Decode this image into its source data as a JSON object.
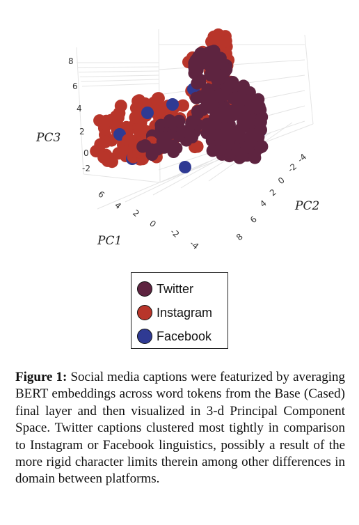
{
  "chart_data": {
    "type": "scatter",
    "subtype": "3d-scatter",
    "axes": {
      "x": {
        "label": "PC1",
        "ticks": [
          "6",
          "4",
          "2",
          "0",
          "-2",
          "-4"
        ]
      },
      "y": {
        "label": "PC2",
        "ticks": [
          "-4",
          "-2",
          "0",
          "2",
          "4",
          "6",
          "8"
        ]
      },
      "z": {
        "label": "PC3",
        "ticks": [
          "-2",
          "0",
          "2",
          "4",
          "6",
          "8"
        ]
      }
    },
    "xlim": [
      -4,
      6
    ],
    "ylim": [
      -4,
      8
    ],
    "zlim": [
      -2,
      8
    ],
    "series": [
      {
        "name": "Twitter",
        "color": "#5e2440"
      },
      {
        "name": "Instagram",
        "color": "#b8352a"
      },
      {
        "name": "Facebook",
        "color": "#2f3a93"
      }
    ],
    "legend_position": "bottom",
    "grid": true
  },
  "caption": {
    "label": "Figure 1:",
    "text": "Social media captions were featurized by averaging BERT embeddings across word tokens from the Base (Cased) final layer and then visualized in 3-d Principal Component Space. Twitter captions clustered most tightly in comparison to Instagram or Facebook linguistics, possibly a result of the more rigid character limits therein among other differences in domain between platforms."
  }
}
